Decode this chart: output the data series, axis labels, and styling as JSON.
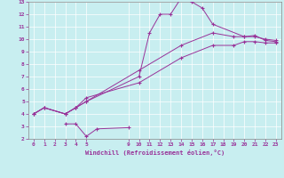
{
  "xlabel": "Windchill (Refroidissement éolien,°C)",
  "bg_color": "#c8eef0",
  "line_color": "#993399",
  "xlim": [
    -0.5,
    23.5
  ],
  "ylim": [
    2,
    13
  ],
  "xticks": [
    0,
    1,
    2,
    3,
    4,
    5,
    9,
    10,
    11,
    12,
    13,
    14,
    15,
    16,
    17,
    18,
    19,
    20,
    21,
    22,
    23
  ],
  "yticks": [
    2,
    3,
    4,
    5,
    6,
    7,
    8,
    9,
    10,
    11,
    12,
    13
  ],
  "series": [
    [
      [
        0,
        4.0
      ],
      [
        1,
        4.5
      ],
      [
        3,
        4.0
      ],
      [
        4,
        4.5
      ],
      [
        5,
        5.0
      ],
      [
        10,
        7.0
      ],
      [
        11,
        10.5
      ],
      [
        12,
        12.0
      ],
      [
        13,
        12.0
      ],
      [
        14,
        13.3
      ],
      [
        15,
        13.0
      ],
      [
        16,
        12.5
      ],
      [
        17,
        11.2
      ],
      [
        20,
        10.2
      ],
      [
        21,
        10.3
      ],
      [
        22,
        9.9
      ],
      [
        23,
        9.8
      ]
    ],
    [
      [
        0,
        4.0
      ],
      [
        1,
        4.5
      ],
      [
        3,
        4.0
      ],
      [
        4,
        4.5
      ],
      [
        5,
        5.0
      ],
      [
        10,
        7.5
      ],
      [
        14,
        9.5
      ],
      [
        17,
        10.5
      ],
      [
        19,
        10.2
      ],
      [
        20,
        10.2
      ],
      [
        21,
        10.2
      ],
      [
        22,
        10.0
      ],
      [
        23,
        9.9
      ]
    ],
    [
      [
        0,
        4.0
      ],
      [
        1,
        4.5
      ],
      [
        3,
        4.0
      ],
      [
        4,
        4.5
      ],
      [
        5,
        5.3
      ],
      [
        10,
        6.5
      ],
      [
        14,
        8.5
      ],
      [
        17,
        9.5
      ],
      [
        19,
        9.5
      ],
      [
        20,
        9.8
      ],
      [
        21,
        9.8
      ],
      [
        22,
        9.7
      ],
      [
        23,
        9.7
      ]
    ],
    [
      [
        3,
        3.2
      ],
      [
        4,
        3.2
      ],
      [
        5,
        2.2
      ],
      [
        6,
        2.8
      ],
      [
        9,
        2.9
      ]
    ]
  ]
}
